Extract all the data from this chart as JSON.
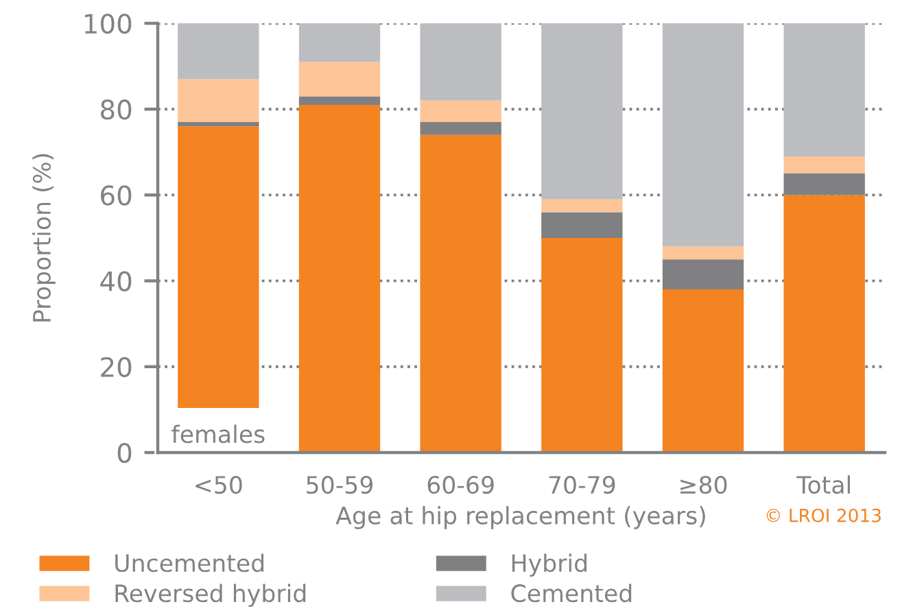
{
  "chart_data": {
    "type": "bar",
    "stacked": true,
    "xlabel": "Age at hip replacement (years)",
    "ylabel": "Proportion (%)",
    "categories": [
      "<50",
      "50-59",
      "60-69",
      "70-79",
      "≥80",
      "Total"
    ],
    "series": [
      {
        "name": "Uncemented",
        "color": "#f48322",
        "values": [
          76,
          81,
          74,
          50,
          38,
          60
        ]
      },
      {
        "name": "Hybrid",
        "color": "#808083",
        "values": [
          1,
          2,
          3,
          6,
          7,
          5
        ]
      },
      {
        "name": "Reversed hybrid",
        "color": "#fdc597",
        "values": [
          10,
          8,
          5,
          3,
          3,
          4
        ]
      },
      {
        "name": "Cemented",
        "color": "#bcbdc0",
        "values": [
          13,
          9,
          18,
          41,
          52,
          31
        ]
      }
    ],
    "ylim": [
      0,
      100
    ],
    "yticks": [
      0,
      20,
      40,
      60,
      80,
      100
    ],
    "grid": "y",
    "legend": "bottom",
    "annotations": [
      "females",
      "© LROI 2013"
    ]
  }
}
